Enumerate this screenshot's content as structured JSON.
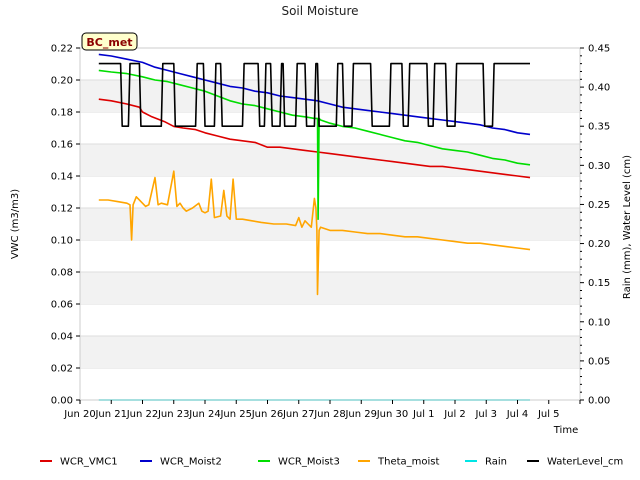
{
  "chart_data": {
    "type": "line",
    "title": "Soil Moisture",
    "badge": "BC_met",
    "xlabel": "Time",
    "ylabel_left": "VWC (m3/m3)",
    "ylabel_right": "Rain (mm), Water Level (cm)",
    "xlim": [
      0,
      16
    ],
    "ylim_left": [
      0,
      0.22
    ],
    "ylim_right": [
      0,
      0.45
    ],
    "x_ticks": [
      {
        "x": 0,
        "label": "Jun 20"
      },
      {
        "x": 1,
        "label": "Jun 21"
      },
      {
        "x": 2,
        "label": "Jun 22"
      },
      {
        "x": 3,
        "label": "Jun 23"
      },
      {
        "x": 4,
        "label": "Jun 24"
      },
      {
        "x": 5,
        "label": "Jun 25"
      },
      {
        "x": 6,
        "label": "Jun 26"
      },
      {
        "x": 7,
        "label": "Jun 27"
      },
      {
        "x": 8,
        "label": "Jun 28"
      },
      {
        "x": 9,
        "label": "Jun 29"
      },
      {
        "x": 10,
        "label": "Jun 30"
      },
      {
        "x": 11,
        "label": "Jul 1"
      },
      {
        "x": 12,
        "label": "Jul 2"
      },
      {
        "x": 13,
        "label": "Jul 3"
      },
      {
        "x": 14,
        "label": "Jul 4"
      },
      {
        "x": 15,
        "label": "Jul 5"
      }
    ],
    "y_ticks_left": [
      "0.00",
      "0.02",
      "0.04",
      "0.06",
      "0.08",
      "0.10",
      "0.12",
      "0.14",
      "0.16",
      "0.18",
      "0.20",
      "0.22"
    ],
    "y_ticks_right": [
      "0.00",
      "0.05",
      "0.10",
      "0.15",
      "0.20",
      "0.25",
      "0.30",
      "0.35",
      "0.40",
      "0.45"
    ],
    "grid": "horizontal bands",
    "legend_position": "bottom",
    "series": [
      {
        "name": "WCR_VMC1",
        "color": "#dd0000",
        "axis": "left",
        "x": [
          0.6,
          1.0,
          1.5,
          1.9,
          2.0,
          2.3,
          2.7,
          3.0,
          3.3,
          3.7,
          4.0,
          4.4,
          4.8,
          5.2,
          5.6,
          6.0,
          6.4,
          6.8,
          7.2,
          7.6,
          8.0,
          8.4,
          8.8,
          9.2,
          9.6,
          10.0,
          10.4,
          10.8,
          11.2,
          11.6,
          12.0,
          12.4,
          12.8,
          13.2,
          13.6,
          14.0,
          14.4
        ],
        "y": [
          0.188,
          0.187,
          0.185,
          0.183,
          0.18,
          0.177,
          0.174,
          0.171,
          0.17,
          0.169,
          0.167,
          0.165,
          0.163,
          0.162,
          0.161,
          0.158,
          0.158,
          0.157,
          0.156,
          0.155,
          0.154,
          0.153,
          0.152,
          0.151,
          0.15,
          0.149,
          0.148,
          0.147,
          0.146,
          0.146,
          0.145,
          0.144,
          0.143,
          0.142,
          0.141,
          0.14,
          0.139
        ]
      },
      {
        "name": "WCR_Moist2",
        "color": "#0000cc",
        "axis": "left",
        "x": [
          0.6,
          1.0,
          1.5,
          2.0,
          2.4,
          2.8,
          3.2,
          3.6,
          4.0,
          4.4,
          4.8,
          5.2,
          5.6,
          6.0,
          6.4,
          6.8,
          7.2,
          7.6,
          8.0,
          8.4,
          8.8,
          9.2,
          9.6,
          10.0,
          10.4,
          10.8,
          11.2,
          11.6,
          12.0,
          12.4,
          12.8,
          13.2,
          13.6,
          14.0,
          14.4
        ],
        "y": [
          0.216,
          0.215,
          0.213,
          0.211,
          0.208,
          0.206,
          0.204,
          0.202,
          0.2,
          0.198,
          0.196,
          0.195,
          0.193,
          0.192,
          0.19,
          0.189,
          0.188,
          0.187,
          0.185,
          0.183,
          0.182,
          0.181,
          0.18,
          0.179,
          0.178,
          0.177,
          0.176,
          0.175,
          0.174,
          0.173,
          0.172,
          0.17,
          0.169,
          0.167,
          0.166
        ]
      },
      {
        "name": "WCR_Moist3",
        "color": "#00dd00",
        "axis": "left",
        "x": [
          0.6,
          1.0,
          1.5,
          2.0,
          2.4,
          2.8,
          3.2,
          3.6,
          4.0,
          4.4,
          4.8,
          5.2,
          5.6,
          6.0,
          6.4,
          6.8,
          7.2,
          7.5,
          7.6,
          7.62,
          7.65,
          7.7,
          8.0,
          8.4,
          8.8,
          9.2,
          9.6,
          10.0,
          10.4,
          10.8,
          11.2,
          11.6,
          12.0,
          12.4,
          12.8,
          13.2,
          13.6,
          14.0,
          14.4
        ],
        "y": [
          0.206,
          0.205,
          0.204,
          0.202,
          0.2,
          0.199,
          0.197,
          0.195,
          0.193,
          0.19,
          0.187,
          0.185,
          0.184,
          0.182,
          0.18,
          0.178,
          0.177,
          0.176,
          0.176,
          0.113,
          0.176,
          0.175,
          0.173,
          0.171,
          0.17,
          0.168,
          0.166,
          0.164,
          0.162,
          0.161,
          0.159,
          0.157,
          0.156,
          0.155,
          0.153,
          0.151,
          0.15,
          0.148,
          0.147
        ]
      },
      {
        "name": "Theta_moist",
        "color": "#ffa500",
        "axis": "left",
        "x": [
          0.6,
          0.9,
          1.2,
          1.5,
          1.6,
          1.65,
          1.7,
          1.8,
          2.0,
          2.1,
          2.2,
          2.4,
          2.5,
          2.6,
          2.8,
          3.0,
          3.1,
          3.2,
          3.3,
          3.4,
          3.6,
          3.8,
          3.9,
          4.0,
          4.1,
          4.2,
          4.3,
          4.5,
          4.6,
          4.7,
          4.8,
          4.9,
          5.0,
          5.2,
          5.5,
          5.8,
          6.2,
          6.6,
          6.9,
          7.0,
          7.1,
          7.2,
          7.3,
          7.4,
          7.5,
          7.55,
          7.58,
          7.6,
          7.65,
          7.7,
          8.0,
          8.4,
          8.8,
          9.2,
          9.6,
          10.0,
          10.4,
          10.8,
          11.2,
          11.6,
          12.0,
          12.4,
          12.8,
          13.2,
          13.6,
          14.0,
          14.4
        ],
        "y": [
          0.125,
          0.125,
          0.124,
          0.123,
          0.122,
          0.1,
          0.122,
          0.127,
          0.123,
          0.121,
          0.122,
          0.139,
          0.122,
          0.123,
          0.122,
          0.143,
          0.121,
          0.123,
          0.12,
          0.118,
          0.12,
          0.123,
          0.118,
          0.117,
          0.118,
          0.138,
          0.114,
          0.115,
          0.131,
          0.115,
          0.113,
          0.138,
          0.113,
          0.113,
          0.112,
          0.111,
          0.11,
          0.11,
          0.109,
          0.114,
          0.108,
          0.112,
          0.11,
          0.108,
          0.126,
          0.12,
          0.106,
          0.066,
          0.106,
          0.108,
          0.106,
          0.106,
          0.105,
          0.104,
          0.104,
          0.103,
          0.102,
          0.102,
          0.101,
          0.1,
          0.099,
          0.098,
          0.098,
          0.097,
          0.096,
          0.095,
          0.094
        ]
      },
      {
        "name": "Rain",
        "color": "#00e5e5",
        "axis": "right",
        "x": [
          0.6,
          14.4
        ],
        "y": [
          0.0,
          0.0
        ]
      },
      {
        "name": "WaterLevel_cm",
        "color": "#000000",
        "axis": "right",
        "x": [
          0.6,
          1.3,
          1.35,
          1.55,
          1.6,
          1.9,
          1.95,
          2.6,
          2.65,
          3.0,
          3.05,
          3.7,
          3.75,
          3.95,
          4.0,
          4.3,
          4.35,
          4.5,
          4.55,
          5.2,
          5.25,
          5.7,
          5.75,
          5.9,
          5.95,
          6.1,
          6.15,
          6.4,
          6.45,
          6.5,
          6.55,
          6.9,
          6.95,
          7.2,
          7.25,
          7.5,
          7.55,
          7.6,
          7.65,
          8.2,
          8.25,
          8.4,
          8.45,
          8.7,
          8.75,
          9.3,
          9.35,
          9.9,
          9.95,
          10.3,
          10.35,
          10.5,
          10.55,
          11.1,
          11.15,
          11.3,
          11.35,
          11.7,
          11.75,
          12.0,
          12.05,
          12.9,
          12.95,
          13.2,
          13.25,
          14.4
        ],
        "y": [
          0.43,
          0.43,
          0.35,
          0.35,
          0.43,
          0.43,
          0.35,
          0.35,
          0.43,
          0.43,
          0.35,
          0.35,
          0.43,
          0.43,
          0.35,
          0.35,
          0.43,
          0.43,
          0.35,
          0.35,
          0.43,
          0.43,
          0.35,
          0.35,
          0.43,
          0.43,
          0.35,
          0.35,
          0.43,
          0.43,
          0.35,
          0.35,
          0.43,
          0.43,
          0.35,
          0.35,
          0.43,
          0.43,
          0.35,
          0.35,
          0.43,
          0.43,
          0.35,
          0.35,
          0.43,
          0.43,
          0.35,
          0.35,
          0.43,
          0.43,
          0.35,
          0.35,
          0.43,
          0.43,
          0.35,
          0.35,
          0.43,
          0.43,
          0.35,
          0.35,
          0.43,
          0.43,
          0.35,
          0.35,
          0.43,
          0.43
        ]
      }
    ]
  }
}
